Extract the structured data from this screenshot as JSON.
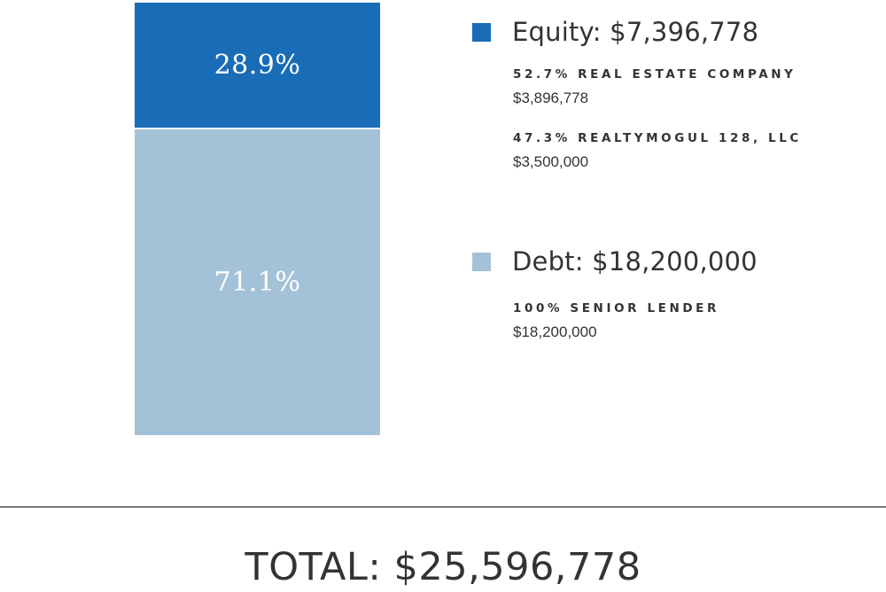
{
  "chart_data": {
    "type": "bar",
    "stacked": true,
    "orientation": "vertical",
    "categories": [
      ""
    ],
    "series": [
      {
        "name": "Equity: $7,396,778",
        "values": [
          28.9
        ],
        "value_label": "28.9%",
        "color": "#196cb6"
      },
      {
        "name": "Debt: $18,200,000",
        "values": [
          71.1
        ],
        "value_label": "71.1%",
        "color": "#a4c2d7"
      }
    ],
    "ylim": [
      0,
      100
    ],
    "grid": false,
    "legend_placement": "right"
  },
  "legend": [
    {
      "title": "Equity: $7,396,778",
      "color": "#196cb6",
      "details": [
        {
          "name": "52.7% REAL ESTATE COMPANY",
          "amount": "$3,896,778"
        },
        {
          "name": "47.3% REALTYMOGUL 128, LLC",
          "amount": "$3,500,000"
        }
      ]
    },
    {
      "title": "Debt: $18,200,000",
      "color": "#a4c2d7",
      "details": [
        {
          "name": "100% SENIOR LENDER",
          "amount": "$18,200,000"
        }
      ]
    }
  ],
  "total": "TOTAL: $25,596,778"
}
